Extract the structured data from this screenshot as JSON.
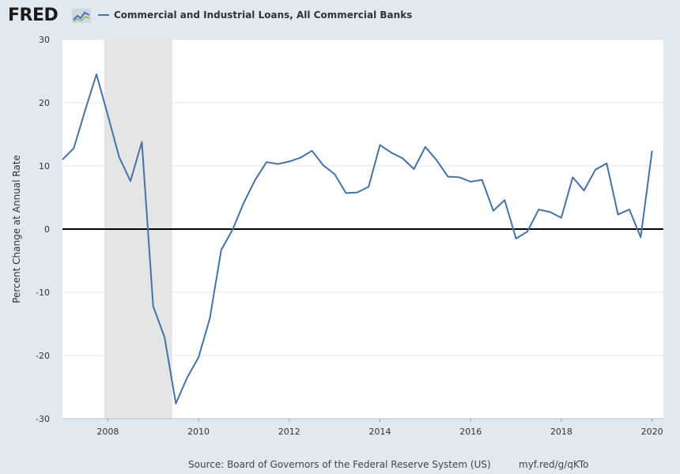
{
  "header": {
    "logo_text": "FRED",
    "logo_icon": "chart-line-icon",
    "legend_label": "Commercial and Industrial Loans, All Commercial Banks",
    "series_color": "#4572a7"
  },
  "footer": {
    "source": "Source: Board of Governors of the Federal Reserve System (US)",
    "link": "myf.red/g/qKTo"
  },
  "chart_data": {
    "type": "line",
    "title": "",
    "xlabel": "",
    "ylabel": "Percent Change at Annual Rate",
    "xlim": [
      2007.0,
      2020.25
    ],
    "ylim": [
      -30,
      30
    ],
    "y_ticks": [
      -30,
      -20,
      -10,
      0,
      10,
      20,
      30
    ],
    "x_ticks": [
      2008,
      2010,
      2012,
      2014,
      2016,
      2018,
      2020
    ],
    "grid": true,
    "legend_position": "top-left",
    "recession_shading": [
      {
        "start": 2007.92,
        "end": 2009.42
      }
    ],
    "series": [
      {
        "name": "Commercial and Industrial Loans, All Commercial Banks",
        "color": "#4572a7",
        "x": [
          2007.0,
          2007.25,
          2007.5,
          2007.75,
          2008.0,
          2008.25,
          2008.5,
          2008.75,
          2009.0,
          2009.25,
          2009.5,
          2009.75,
          2010.0,
          2010.25,
          2010.5,
          2010.75,
          2011.0,
          2011.25,
          2011.5,
          2011.75,
          2012.0,
          2012.25,
          2012.5,
          2012.75,
          2013.0,
          2013.25,
          2013.5,
          2013.75,
          2014.0,
          2014.25,
          2014.5,
          2014.75,
          2015.0,
          2015.25,
          2015.5,
          2015.75,
          2016.0,
          2016.25,
          2016.5,
          2016.75,
          2017.0,
          2017.25,
          2017.5,
          2017.75,
          2018.0,
          2018.25,
          2018.5,
          2018.75,
          2019.0,
          2019.25,
          2019.5,
          2019.75,
          2020.0
        ],
        "values": [
          11.0,
          12.8,
          18.8,
          24.5,
          18.0,
          11.4,
          7.6,
          13.8,
          -12.2,
          -17.1,
          -27.6,
          -23.5,
          -20.3,
          -14.1,
          -3.3,
          -0.1,
          4.2,
          7.8,
          10.6,
          10.3,
          10.7,
          11.3,
          12.4,
          10.1,
          8.7,
          5.7,
          5.8,
          6.7,
          13.3,
          12.1,
          11.2,
          9.5,
          13.0,
          10.9,
          8.3,
          8.2,
          7.5,
          7.8,
          2.9,
          4.6,
          -1.5,
          -0.4,
          3.1,
          2.7,
          1.8,
          8.2,
          6.1,
          9.4,
          10.4,
          2.3,
          3.1,
          -1.3,
          12.4
        ]
      }
    ]
  }
}
